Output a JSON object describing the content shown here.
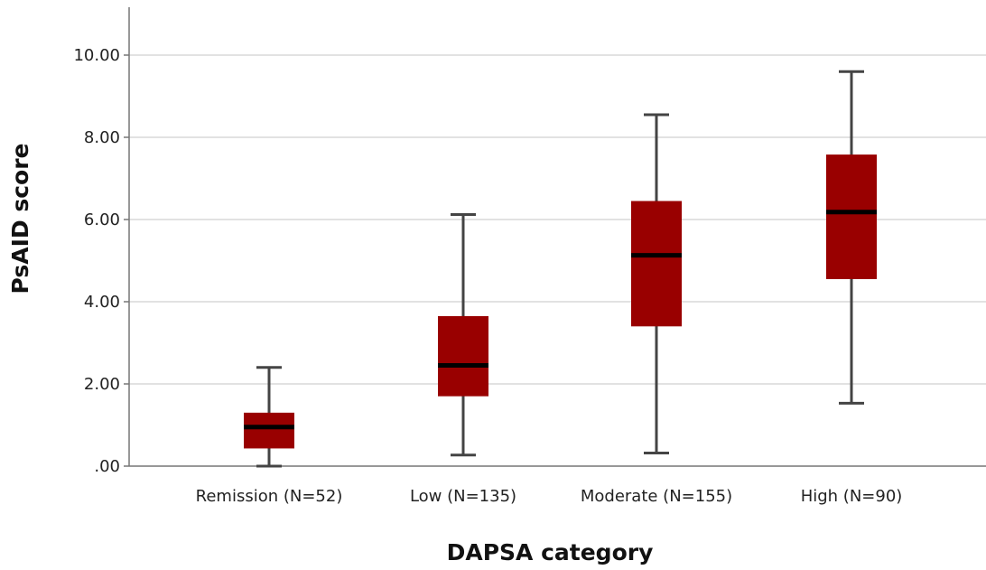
{
  "chart_data": {
    "type": "boxplot",
    "title": "",
    "xlabel": "DAPSA category",
    "ylabel": "PsAID score",
    "ylim": [
      0,
      11.2
    ],
    "yticks": [
      0,
      2,
      4,
      6,
      8,
      10
    ],
    "ytick_labels": [
      ".00",
      "2.00",
      "4.00",
      "6.00",
      "8.00",
      "10.00"
    ],
    "grid": true,
    "categories": [
      "Remission (N=52)",
      "Low (N=135)",
      "Moderate (N=155)",
      "High (N=90)"
    ],
    "boxes": [
      {
        "min": 0.0,
        "q1": 0.43,
        "median": 0.95,
        "q3": 1.3,
        "max": 2.4
      },
      {
        "min": 0.27,
        "q1": 1.7,
        "median": 2.45,
        "q3": 3.65,
        "max": 6.12
      },
      {
        "min": 0.32,
        "q1": 3.4,
        "median": 5.13,
        "q3": 6.45,
        "max": 8.55
      },
      {
        "min": 1.53,
        "q1": 4.55,
        "median": 6.18,
        "q3": 7.58,
        "max": 9.6
      }
    ],
    "colors": {
      "box_fill": "#990000",
      "median": "#000000",
      "whisker": "#444444",
      "grid": "#d9d9d9",
      "axis": "#777777"
    }
  }
}
